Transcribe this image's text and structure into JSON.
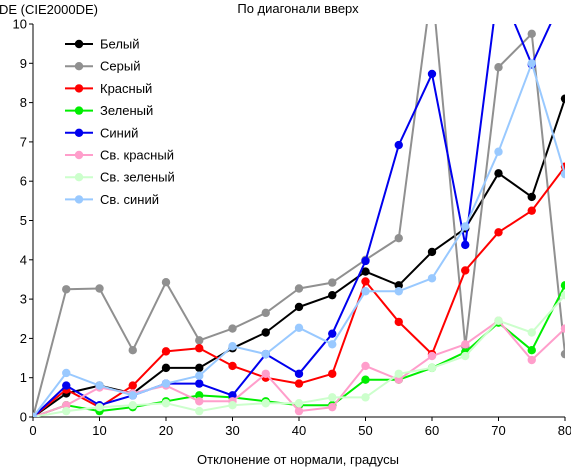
{
  "chart_data": {
    "type": "line",
    "title": "По диагонали вверх",
    "ylabel": "DE (CIE2000DE)",
    "xlabel": "Отклонение от нормали, градусы",
    "xlim": [
      0,
      80
    ],
    "ylim": [
      0,
      10
    ],
    "xticks": [
      "0",
      "10",
      "20",
      "30",
      "40",
      "50",
      "60",
      "70",
      "80"
    ],
    "yticks": [
      "0",
      "1",
      "2",
      "3",
      "4",
      "5",
      "6",
      "7",
      "8",
      "9",
      "10"
    ],
    "grid": false,
    "legend_position": "top-left",
    "x": [
      0,
      5,
      10,
      15,
      20,
      25,
      30,
      35,
      40,
      45,
      50,
      55,
      60,
      65,
      70,
      75,
      80
    ],
    "series": [
      {
        "name": "Белый",
        "color": "#000000",
        "values": [
          0,
          0.6,
          0.8,
          0.6,
          1.25,
          1.25,
          1.75,
          2.15,
          2.8,
          3.1,
          3.7,
          3.35,
          4.2,
          4.8,
          6.2,
          5.6,
          8.1
        ]
      },
      {
        "name": "Серый",
        "color": "#909090",
        "values": [
          0,
          3.25,
          3.27,
          1.7,
          3.43,
          1.95,
          2.25,
          2.65,
          3.27,
          3.42,
          4.0,
          4.55,
          11.0,
          1.8,
          8.9,
          9.75,
          1.6
        ]
      },
      {
        "name": "Красный",
        "color": "#ff0000",
        "values": [
          0,
          0.7,
          0.25,
          0.8,
          1.67,
          1.75,
          1.3,
          1.0,
          0.85,
          1.1,
          3.45,
          2.42,
          1.6,
          3.73,
          4.7,
          5.25,
          6.37
        ]
      },
      {
        "name": "Зеленый",
        "color": "#00ee00",
        "values": [
          0,
          0.3,
          0.15,
          0.25,
          0.4,
          0.55,
          0.5,
          0.4,
          0.3,
          0.3,
          0.95,
          0.95,
          1.25,
          1.65,
          2.4,
          1.7,
          3.35
        ]
      },
      {
        "name": "Синий",
        "color": "#0000ee",
        "values": [
          0,
          0.8,
          0.3,
          0.55,
          0.85,
          0.85,
          0.55,
          1.6,
          1.1,
          2.12,
          3.97,
          6.92,
          8.73,
          4.38,
          11.0,
          8.97,
          10.8
        ]
      },
      {
        "name": "Св. красный",
        "color": "#ff9ecb",
        "values": [
          0,
          0.3,
          0.75,
          0.6,
          0.8,
          0.4,
          0.4,
          1.1,
          0.15,
          0.25,
          1.3,
          0.95,
          1.55,
          1.85,
          2.45,
          1.45,
          2.25
        ]
      },
      {
        "name": "Св. зеленый",
        "color": "#ccffcc",
        "values": [
          0,
          0.15,
          0.25,
          0.3,
          0.35,
          0.15,
          0.3,
          0.35,
          0.35,
          0.5,
          0.5,
          1.1,
          1.25,
          1.55,
          2.45,
          2.15,
          3.1
        ]
      },
      {
        "name": "Св. синий",
        "color": "#99c9ff",
        "values": [
          0,
          1.12,
          0.8,
          0.55,
          0.85,
          1.05,
          1.8,
          1.6,
          2.27,
          1.85,
          3.2,
          3.2,
          3.53,
          4.85,
          6.75,
          9.0,
          6.18
        ]
      }
    ]
  }
}
